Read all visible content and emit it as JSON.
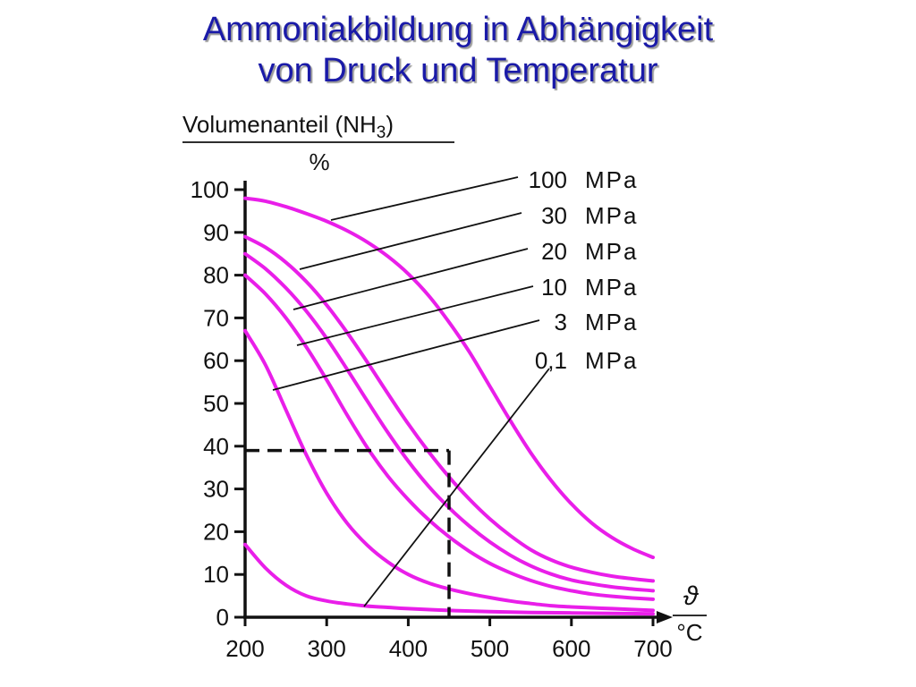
{
  "title_lines": [
    "Ammoniakbildung in Abhängigkeit",
    "von Druck und Temperatur"
  ],
  "chart_data": {
    "type": "line",
    "ylabel_top": "Volumenanteil (NH",
    "ylabel_sub": "3",
    "ylabel_close": ")",
    "ylabel_unit": "%",
    "xlabel_symbol": "ϑ",
    "xlabel_unit": "°C",
    "xlim": [
      200,
      700
    ],
    "ylim": [
      0,
      100
    ],
    "xticks": [
      200,
      300,
      400,
      500,
      600,
      700
    ],
    "yticks": [
      0,
      10,
      20,
      30,
      40,
      50,
      60,
      70,
      80,
      90,
      100
    ],
    "unit": "MPa",
    "curve_color": "#e91ee9",
    "series": [
      {
        "name": "100",
        "x": [
          200,
          225,
          250,
          275,
          300,
          325,
          350,
          375,
          400,
          425,
          450,
          475,
          500,
          525,
          550,
          575,
          600,
          625,
          650,
          675,
          700
        ],
        "y": [
          98,
          97.3,
          96,
          94.4,
          92.6,
          90.4,
          87.7,
          84.4,
          80.3,
          75.2,
          69,
          62,
          54,
          46,
          38.5,
          32,
          26.5,
          22,
          18.6,
          16,
          14
        ]
      },
      {
        "name": "30",
        "x": [
          200,
          225,
          250,
          275,
          300,
          325,
          350,
          375,
          400,
          425,
          450,
          475,
          500,
          525,
          550,
          575,
          600,
          625,
          650,
          675,
          700
        ],
        "y": [
          89,
          86.5,
          83,
          78.5,
          73,
          66.6,
          59.6,
          52.3,
          45.2,
          38.7,
          32.8,
          27.6,
          23,
          19.1,
          15.8,
          13.4,
          11.7,
          10.5,
          9.6,
          9,
          8.5
        ]
      },
      {
        "name": "20",
        "x": [
          200,
          225,
          250,
          275,
          300,
          325,
          350,
          375,
          400,
          425,
          450,
          475,
          500,
          525,
          550,
          575,
          600,
          625,
          650,
          675,
          700
        ],
        "y": [
          85,
          81.5,
          77,
          71.6,
          65.2,
          58,
          50.5,
          43.2,
          36.5,
          30.6,
          25.6,
          21.3,
          17.6,
          14.5,
          12,
          10.1,
          8.7,
          7.8,
          7.1,
          6.6,
          6.2
        ]
      },
      {
        "name": "10",
        "x": [
          200,
          225,
          250,
          275,
          300,
          325,
          350,
          375,
          400,
          425,
          450,
          475,
          500,
          525,
          550,
          575,
          600,
          625,
          650,
          675,
          700
        ],
        "y": [
          80,
          75.6,
          70,
          63.2,
          55.5,
          47.3,
          39.6,
          33,
          27.5,
          22.8,
          18.8,
          15.4,
          12.6,
          10.4,
          8.6,
          7.2,
          6.2,
          5.4,
          4.9,
          4.5,
          4.2
        ]
      },
      {
        "name": "3",
        "x": [
          200,
          225,
          250,
          275,
          300,
          325,
          350,
          375,
          400,
          425,
          450,
          475,
          500,
          525,
          550,
          575,
          600,
          625,
          650,
          675,
          700
        ],
        "y": [
          67,
          59,
          48.5,
          38,
          29,
          22,
          16.8,
          12.9,
          10,
          8,
          6.6,
          5.5,
          4.6,
          3.8,
          3.2,
          2.7,
          2.4,
          2.2,
          2,
          1.8,
          1.6
        ]
      },
      {
        "name": "0,1",
        "x": [
          200,
          225,
          250,
          275,
          300,
          325,
          350,
          375,
          400,
          450,
          500,
          550,
          600,
          650,
          700
        ],
        "y": [
          17,
          11.5,
          7.5,
          5,
          3.8,
          3.1,
          2.6,
          2.3,
          2,
          1.6,
          1.3,
          1.1,
          1,
          0.9,
          0.8
        ]
      }
    ],
    "reference_point": {
      "x": 450,
      "y": 39
    }
  }
}
